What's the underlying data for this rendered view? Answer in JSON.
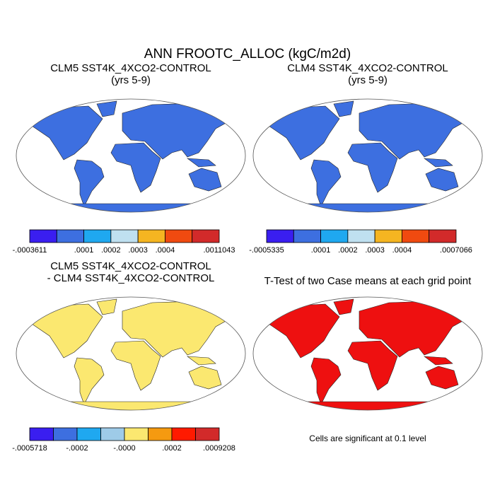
{
  "title": "ANN FROOTC_ALLOC (kgC/m2d)",
  "panels": [
    {
      "title": [
        "CLM5 SST4K_4XCO2-CONTROL",
        "(yrs 5-9)"
      ],
      "land_color": "#3d6fe0",
      "colorbar": {
        "colors": [
          "#3a1ef0",
          "#3d6fe0",
          "#1fa8f0",
          "#bfe0f0",
          "#f5b521",
          "#f04a10",
          "#d22a2a"
        ],
        "labels": [
          "-.0003611",
          ".0001",
          ".0002",
          ".0003",
          ".0004",
          ".0011043"
        ]
      }
    },
    {
      "title": [
        "CLM4 SST4K_4XCO2-CONTROL",
        "(yrs 5-9)"
      ],
      "land_color": "#3d6fe0",
      "colorbar": {
        "colors": [
          "#3a1ef0",
          "#3d6fe0",
          "#1fa8f0",
          "#bfe0f0",
          "#f5b521",
          "#f04a10",
          "#d22a2a"
        ],
        "labels": [
          "-.0005335",
          ".0001",
          ".0002",
          ".0003",
          ".0004",
          ".0007066"
        ]
      }
    },
    {
      "title": [
        "CLM5 SST4K_4XCO2-CONTROL",
        "- CLM4 SST4K_4XCO2-CONTROL"
      ],
      "land_color": "#fbe870",
      "colorbar": {
        "colors": [
          "#3a1ef0",
          "#3d6fe0",
          "#1fa8f0",
          "#9ecbe8",
          "#fbe870",
          "#f59a10",
          "#ff1a00",
          "#d22a2a"
        ],
        "labels": [
          "-.0005718",
          "-.0002",
          "-.0000",
          ".0002",
          ".0009208"
        ]
      }
    },
    {
      "title": [
        "T-Test of two Case means at each grid point"
      ],
      "land_color": "#ee1010",
      "note": "Cells are significant at 0.1 level"
    }
  ]
}
